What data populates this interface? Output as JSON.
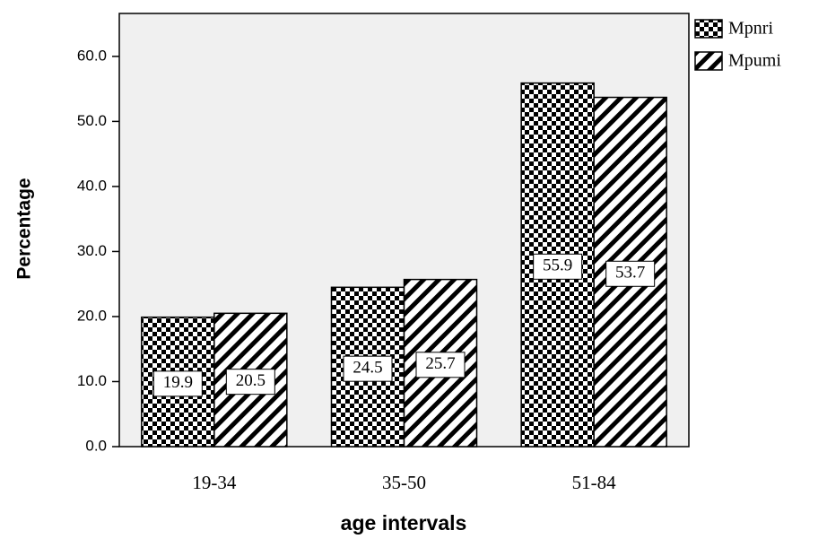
{
  "chart_data": {
    "type": "bar",
    "y_label": "Percentage",
    "x_label": "age intervals",
    "categories": [
      "19-34",
      "35-50",
      "51-84"
    ],
    "series": [
      {
        "name": "Mpnri",
        "color": "#000000",
        "pattern": "checker",
        "values": [
          19.9,
          24.5,
          55.9
        ]
      },
      {
        "name": "Mpumi",
        "color": "#000000",
        "pattern": "hatch",
        "values": [
          20.5,
          25.7,
          53.7
        ]
      }
    ],
    "ylim": [
      0,
      66.6
    ],
    "yticks": [
      {
        "value": 0,
        "label": "0.0"
      },
      {
        "value": 10,
        "label": "10.0"
      },
      {
        "value": 20,
        "label": "20.0"
      },
      {
        "value": 30,
        "label": "30.0"
      },
      {
        "value": 40,
        "label": "40.0"
      },
      {
        "value": 50,
        "label": "50.0"
      },
      {
        "value": 60,
        "label": "60.0"
      }
    ],
    "legend": "top-right-outside"
  }
}
